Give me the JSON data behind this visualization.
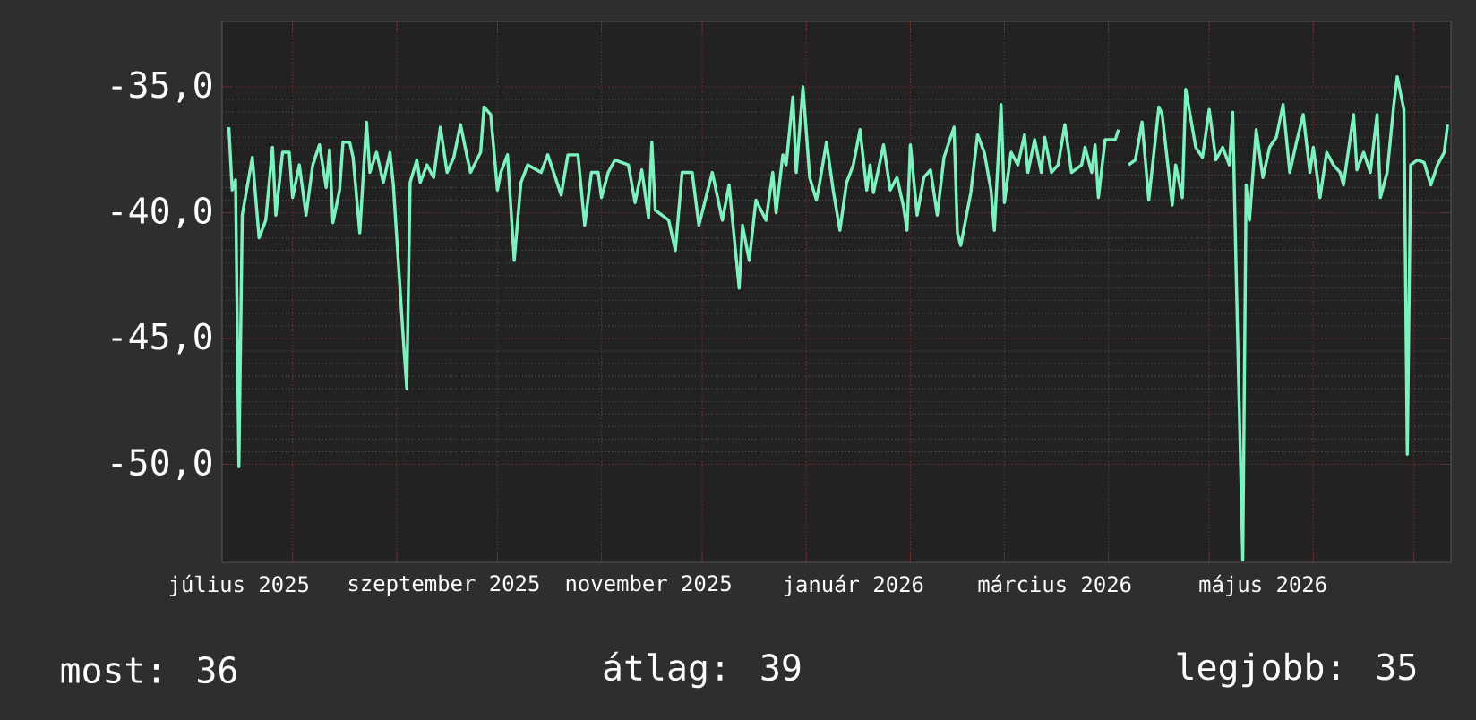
{
  "chart_data": {
    "type": "line",
    "x": [
      "2025-07-13",
      "2025-07-14",
      "2025-07-15",
      "2025-07-16",
      "2025-07-17",
      "2025-07-20",
      "2025-07-22",
      "2025-07-24",
      "2025-07-26",
      "2025-07-27",
      "2025-07-29",
      "2025-07-31",
      "2025-08-01",
      "2025-08-03",
      "2025-08-05",
      "2025-08-07",
      "2025-08-09",
      "2025-08-11",
      "2025-08-12",
      "2025-08-13",
      "2025-08-15",
      "2025-08-16",
      "2025-08-18",
      "2025-08-19",
      "2025-08-21",
      "2025-08-23",
      "2025-08-24",
      "2025-08-26",
      "2025-08-28",
      "2025-08-30",
      "2025-08-31",
      "2025-09-03",
      "2025-09-04",
      "2025-09-05",
      "2025-09-07",
      "2025-09-08",
      "2025-09-10",
      "2025-09-12",
      "2025-09-14",
      "2025-09-16",
      "2025-09-18",
      "2025-09-20",
      "2025-09-22",
      "2025-09-23",
      "2025-09-26",
      "2025-09-27",
      "2025-09-29",
      "2025-10-01",
      "2025-10-02",
      "2025-10-04",
      "2025-10-06",
      "2025-10-08",
      "2025-10-10",
      "2025-10-14",
      "2025-10-16",
      "2025-10-17",
      "2025-10-20",
      "2025-10-22",
      "2025-10-25",
      "2025-10-27",
      "2025-10-29",
      "2025-10-31",
      "2025-11-01",
      "2025-11-03",
      "2025-11-05",
      "2025-11-09",
      "2025-11-11",
      "2025-11-13",
      "2025-11-15",
      "2025-11-16",
      "2025-11-17",
      "2025-11-21",
      "2025-11-23",
      "2025-11-25",
      "2025-11-28",
      "2025-11-30",
      "2025-12-04",
      "2025-12-07",
      "2025-12-09",
      "2025-12-12",
      "2025-12-13",
      "2025-12-15",
      "2025-12-17",
      "2025-12-20",
      "2025-12-22",
      "2025-12-23",
      "2025-12-25",
      "2025-12-26",
      "2025-12-28",
      "2025-12-29",
      "2025-12-31",
      "2026-01-02",
      "2026-01-04",
      "2026-01-05",
      "2026-01-07",
      "2026-01-09",
      "2026-01-11",
      "2026-01-13",
      "2026-01-15",
      "2026-01-17",
      "2026-01-19",
      "2026-01-20",
      "2026-01-21",
      "2026-01-24",
      "2026-01-26",
      "2026-01-28",
      "2026-01-30",
      "2026-01-31",
      "2026-02-01",
      "2026-02-03",
      "2026-02-05",
      "2026-02-07",
      "2026-02-09",
      "2026-02-11",
      "2026-02-14",
      "2026-02-15",
      "2026-02-16",
      "2026-02-19",
      "2026-02-21",
      "2026-02-23",
      "2026-02-25",
      "2026-02-26",
      "2026-02-28",
      "2026-03-01",
      "2026-03-03",
      "2026-03-05",
      "2026-03-07",
      "2026-03-08",
      "2026-03-10",
      "2026-03-12",
      "2026-03-13",
      "2026-03-15",
      "2026-03-17",
      "2026-03-19",
      "2026-03-21",
      "2026-03-24",
      "2026-03-25",
      "2026-03-27",
      "2026-03-28",
      "2026-03-29",
      "2026-03-31",
      "2026-04-03",
      "2026-04-04",
      "2026-04-06",
      "2026-04-07",
      "2026-04-09",
      "2026-04-11",
      "2026-04-13",
      "2026-04-16",
      "2026-04-17",
      "2026-04-20",
      "2026-04-21",
      "2026-04-23",
      "2026-04-24",
      "2026-04-27",
      "2026-04-29",
      "2026-05-01",
      "2026-05-03",
      "2026-05-05",
      "2026-05-07",
      "2026-05-08",
      "2026-05-09",
      "2026-05-11",
      "2026-05-12",
      "2026-05-13",
      "2026-05-15",
      "2026-05-17",
      "2026-05-19",
      "2026-05-21",
      "2026-05-23",
      "2026-05-25",
      "2026-05-27",
      "2026-05-29",
      "2026-05-31",
      "2026-06-01",
      "2026-06-03",
      "2026-06-05",
      "2026-06-07",
      "2026-06-09",
      "2026-06-10",
      "2026-06-13",
      "2026-06-14",
      "2026-06-16",
      "2026-06-18",
      "2026-06-20",
      "2026-06-21",
      "2026-06-23",
      "2026-06-25",
      "2026-06-26",
      "2026-06-28",
      "2026-06-29",
      "2026-06-30",
      "2026-07-02",
      "2026-07-04",
      "2026-07-06",
      "2026-07-08",
      "2026-07-10",
      "2026-07-11"
    ],
    "series": [
      {
        "color": "#7df2bf",
        "values": [
          -36.6,
          -39.1,
          -38.7,
          -50.1,
          -40.1,
          -37.8,
          -41.0,
          -40.3,
          -37.4,
          -40.1,
          -37.6,
          -37.6,
          -39.4,
          -38.1,
          -40.1,
          -38.1,
          -37.3,
          -39.0,
          -37.5,
          -40.4,
          -39.1,
          -37.2,
          -37.2,
          -37.8,
          -40.8,
          -36.4,
          -38.4,
          -37.6,
          -38.8,
          -37.6,
          -38.9,
          -45.1,
          -47.0,
          -38.8,
          -37.9,
          -38.8,
          -38.1,
          -38.6,
          -36.6,
          -38.4,
          -37.8,
          -36.5,
          -37.8,
          -38.4,
          -37.6,
          -35.8,
          -36.1,
          -39.1,
          -38.4,
          -37.7,
          -41.9,
          -38.8,
          -38.1,
          -38.4,
          -37.7,
          -38.1,
          -39.3,
          -37.7,
          -37.7,
          -40.5,
          -38.4,
          -38.4,
          -39.4,
          -38.4,
          -37.9,
          -38.1,
          -39.6,
          -38.3,
          -40.2,
          -37.2,
          -39.9,
          -40.3,
          -41.5,
          -38.4,
          -38.4,
          -40.5,
          -38.4,
          -40.3,
          -38.9,
          -43.0,
          -40.5,
          -41.9,
          -39.5,
          -40.3,
          -38.4,
          -40.0,
          -37.7,
          -38.1,
          -35.4,
          -38.4,
          -35.0,
          -38.6,
          -39.5,
          -38.8,
          -37.2,
          -39.1,
          -40.7,
          -38.8,
          -38.1,
          -36.7,
          -39.1,
          -38.1,
          -39.2,
          -37.3,
          -39.1,
          -38.6,
          -39.8,
          -40.7,
          -37.3,
          -40.1,
          -38.6,
          -38.3,
          -40.1,
          -37.8,
          -36.6,
          -40.8,
          -41.3,
          -39.2,
          -36.9,
          -37.6,
          -39.1,
          -40.7,
          -35.7,
          -39.6,
          -37.6,
          -38.1,
          -36.9,
          -38.4,
          -37.1,
          -38.4,
          -37.0,
          -38.4,
          -38.1,
          -36.5,
          -38.4,
          -38.1,
          -37.4,
          -38.4,
          -37.3,
          -39.4,
          -37.1,
          -37.1,
          -36.7,
          null,
          -38.1,
          -37.9,
          -36.4,
          -39.5,
          -35.8,
          -36.1,
          -39.7,
          -38.1,
          -39.4,
          -35.1,
          -37.4,
          -37.8,
          -35.9,
          -37.9,
          -37.4,
          -38.1,
          -36.0,
          -42.2,
          -53.8,
          -38.9,
          -40.3,
          -36.7,
          -38.6,
          -37.4,
          -37.0,
          -35.7,
          -38.4,
          -37.2,
          -36.1,
          -38.4,
          -37.4,
          -39.4,
          -37.6,
          -38.1,
          -38.4,
          -38.9,
          -36.1,
          -38.3,
          -37.6,
          -38.4,
          -36.1,
          -39.4,
          -38.4,
          -35.7,
          -34.6,
          -35.9,
          -49.6,
          -38.1,
          -37.9,
          -38.0,
          -38.9,
          -38.1,
          -37.6,
          -36.5
        ]
      }
    ],
    "xlim": [
      "2025-07-11",
      "2026-07-12"
    ],
    "xticks": [
      {
        "value": "2025-08-01",
        "label": null
      },
      {
        "value": "2025-09-01",
        "label": null
      },
      {
        "value": "2025-10-01",
        "label": null
      },
      {
        "value": "2025-11-01",
        "label": null
      },
      {
        "value": "2025-12-01",
        "label": null
      },
      {
        "value": "2026-01-01",
        "label": null
      },
      {
        "value": "2026-02-01",
        "label": null
      },
      {
        "value": "2026-03-01",
        "label": null
      },
      {
        "value": "2026-04-01",
        "label": null
      },
      {
        "value": "2026-05-01",
        "label": null
      },
      {
        "value": "2026-06-01",
        "label": null
      },
      {
        "value": "2026-07-01",
        "label": null
      },
      {
        "value": "2025-07-16",
        "label": "július 2025"
      },
      {
        "value": "2025-09-15",
        "label": "szeptember 2025"
      },
      {
        "value": "2025-11-15",
        "label": "november 2025"
      },
      {
        "value": "2026-01-15",
        "label": "január 2026"
      },
      {
        "value": "2026-03-16",
        "label": "március 2026"
      },
      {
        "value": "2026-05-17",
        "label": "május 2026"
      }
    ],
    "ylim": [
      -53.9,
      -32.4
    ],
    "yticks": [
      {
        "value": -35,
        "label": "-35,0"
      },
      {
        "value": -40,
        "label": "-40,0"
      },
      {
        "value": -45,
        "label": "-45,0"
      },
      {
        "value": -50,
        "label": "-50,0"
      }
    ],
    "grid": true,
    "annotations": [
      "most: 36",
      "átlag: 39",
      "legjobb: 35"
    ]
  }
}
